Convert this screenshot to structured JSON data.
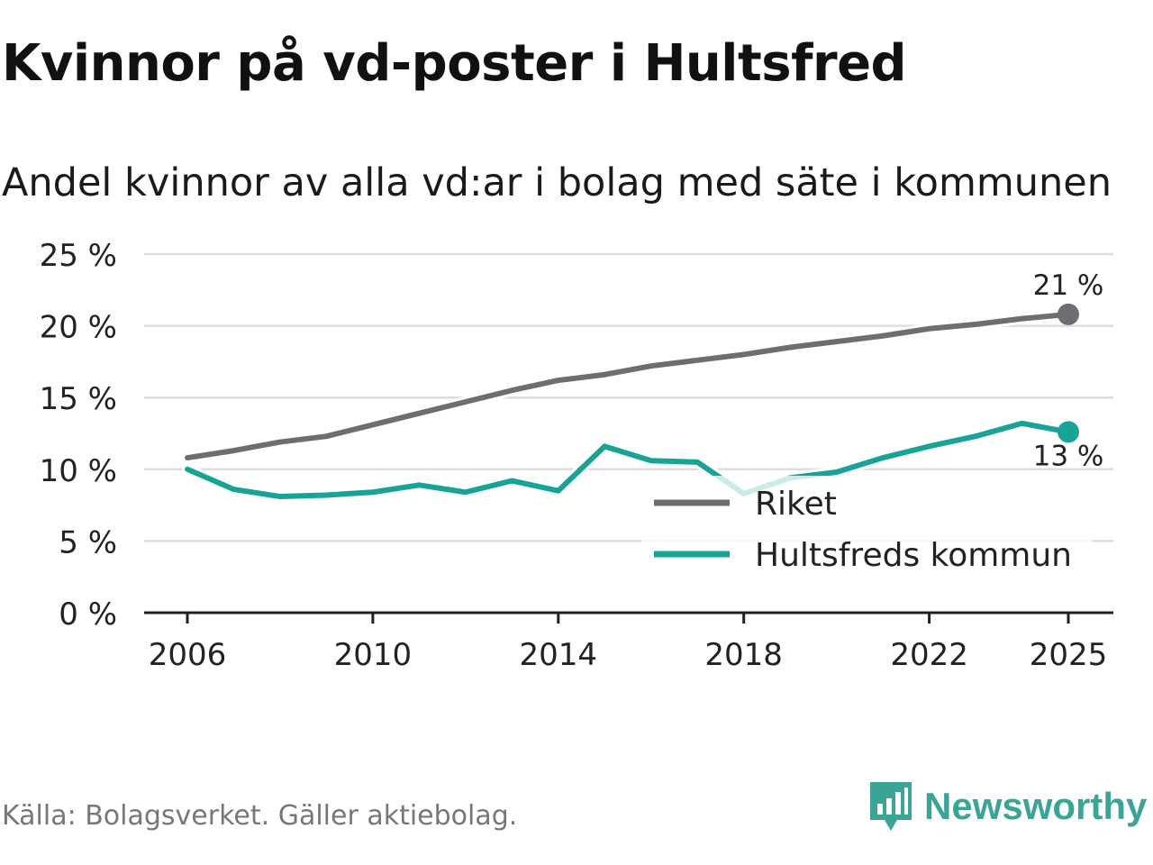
{
  "title": "Kvinnor på vd-poster i Hultsfred",
  "subtitle": "Andel kvinnor av alla vd:ar i bolag med säte i kommunen",
  "source": "Källa: Bolagsverket. Gäller aktiebolag.",
  "brand": "Newsworthy",
  "colors": {
    "riket": "#6e6d73",
    "hultsfred": "#17a497",
    "grid": "#dddddd",
    "axis": "#222222"
  },
  "chart_data": {
    "type": "line",
    "x": [
      2006,
      2007,
      2008,
      2009,
      2010,
      2011,
      2012,
      2013,
      2014,
      2015,
      2016,
      2017,
      2018,
      2019,
      2020,
      2021,
      2022,
      2023,
      2024,
      2025
    ],
    "series": [
      {
        "name": "Riket",
        "values": [
          10.8,
          11.3,
          11.9,
          12.3,
          13.1,
          13.9,
          14.7,
          15.5,
          16.2,
          16.6,
          17.2,
          17.6,
          18.0,
          18.5,
          18.9,
          19.3,
          19.8,
          20.1,
          20.5,
          20.8
        ],
        "end_label": "21 %"
      },
      {
        "name": "Hultsfreds kommun",
        "values": [
          10.0,
          8.6,
          8.1,
          8.2,
          8.4,
          8.9,
          8.4,
          9.2,
          8.5,
          11.6,
          10.6,
          10.5,
          8.3,
          9.4,
          9.8,
          10.8,
          11.6,
          12.3,
          13.2,
          12.6
        ],
        "end_label": "13 %"
      }
    ],
    "ylim": [
      0,
      25
    ],
    "yticks": [
      0,
      5,
      10,
      15,
      20,
      25
    ],
    "ytick_labels": [
      "0 %",
      "5 %",
      "10 %",
      "15 %",
      "20 %",
      "25 %"
    ],
    "xticks": [
      2006,
      2010,
      2014,
      2018,
      2022,
      2025
    ],
    "xtick_labels": [
      "2006",
      "2010",
      "2014",
      "2018",
      "2022",
      "2025"
    ],
    "xlabel": "",
    "ylabel": "",
    "grid": true,
    "legend": [
      "Riket",
      "Hultsfreds kommun"
    ],
    "legend_position": "bottom-right"
  }
}
